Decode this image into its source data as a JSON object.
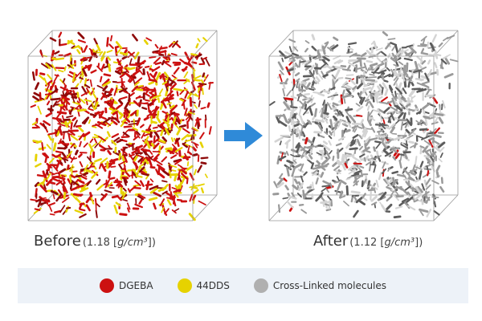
{
  "captions": {
    "before": {
      "label": "Before",
      "value_text": "(1.18 [",
      "unit": "g/cm³",
      "close": "])"
    },
    "after": {
      "label": "After",
      "value_text": "(1.12 [",
      "unit": "g/cm³",
      "close": "])"
    }
  },
  "legend": {
    "items": [
      {
        "label": "DGEBA",
        "color": "#cc1111"
      },
      {
        "label": "44DDS",
        "color": "#e6d200"
      },
      {
        "label": "Cross-Linked molecules",
        "color": "#b0b0b0"
      }
    ]
  },
  "colors": {
    "arrow": "#2f8ad8",
    "box_edge": "#999999"
  }
}
